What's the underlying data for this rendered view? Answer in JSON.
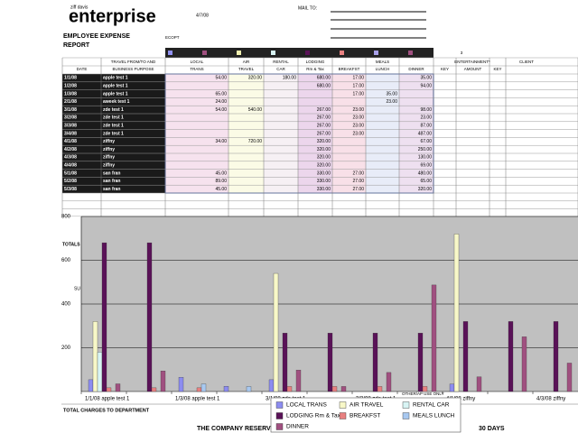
{
  "header": {
    "brand_small": "ziff davis",
    "brand": "enterprise",
    "date": "4/7/08",
    "mail_to": "MAIL TO:",
    "title_line1": "EMPLOYEE EXPENSE",
    "title_line2": "REPORT",
    "code": "ECOPT"
  },
  "table": {
    "section_number": "3",
    "entertainment": "ENTERTAINMENT*",
    "client": "CLIENT",
    "columns": [
      {
        "bottom": "DATE"
      },
      {
        "top": "TRAVEL FROM/TO AND",
        "bottom": "BUSINESS PURPOSE"
      },
      {
        "top": "LOCAL",
        "bottom": "TRANS"
      },
      {
        "top": "AIR",
        "bottom": "TRAVEL"
      },
      {
        "top": "RENTAL",
        "bottom": "CAR"
      },
      {
        "top": "LODGING",
        "bottom": "Rm & Tax"
      },
      {
        "bottom": "BREAKFST"
      },
      {
        "top": "MEALS",
        "bottom": "LUNCH"
      },
      {
        "bottom": "DINNER"
      },
      {
        "bottom": "KEY"
      },
      {
        "bottom": "AMOUNT"
      },
      {
        "bottom": "KEY"
      }
    ],
    "rows": [
      [
        "1/1/08",
        "apple test 1",
        "54.00",
        "320.00",
        "180.00",
        "680.00",
        "17.00",
        null,
        "35.00"
      ],
      [
        "1/2/08",
        "apple test 1",
        null,
        null,
        null,
        "680.00",
        "17.00",
        null,
        "94.00"
      ],
      [
        "1/3/08",
        "apple test 1",
        "65.00",
        null,
        null,
        null,
        "17.00",
        "35.00",
        null
      ],
      [
        "2/1/08",
        "aweek test 1",
        "24.00",
        null,
        null,
        null,
        null,
        "23.00",
        null
      ],
      [
        "3/1/08",
        "zde test 1",
        "54.00",
        "540.00",
        null,
        "267.00",
        "23.00",
        null,
        "98.00"
      ],
      [
        "3/2/08",
        "zde test 1",
        null,
        null,
        null,
        "267.00",
        "23.00",
        null,
        "23.00"
      ],
      [
        "3/3/08",
        "zde test 1",
        null,
        null,
        null,
        "267.00",
        "23.00",
        null,
        "87.00"
      ],
      [
        "3/4/08",
        "zde test 1",
        null,
        null,
        null,
        "267.00",
        "23.00",
        null,
        "487.00"
      ],
      [
        "4/1/08",
        "ziffny",
        "34.00",
        "720.00",
        null,
        "320.00",
        null,
        null,
        "67.00"
      ],
      [
        "4/2/08",
        "ziffny",
        null,
        null,
        null,
        "320.00",
        null,
        null,
        "250.00"
      ],
      [
        "4/3/08",
        "ziffny",
        null,
        null,
        null,
        "320.00",
        null,
        null,
        "130.00"
      ],
      [
        "4/4/08",
        "ziffny",
        null,
        null,
        null,
        "320.00",
        null,
        null,
        "69.00"
      ],
      [
        "5/1/08",
        "san fran",
        "45.00",
        null,
        null,
        "330.00",
        "27.00",
        null,
        "480.00"
      ],
      [
        "5/2/08",
        "san fran",
        "89.00",
        null,
        null,
        "330.00",
        "27.00",
        null,
        "65.00"
      ],
      [
        "5/3/08",
        "san fran",
        "45.00",
        null,
        null,
        "330.00",
        "27.00",
        null,
        "320.00"
      ]
    ]
  },
  "chart_data": {
    "type": "bar",
    "categories": [
      "1/1/08 apple test 1",
      null,
      "1/3/08 apple test 1",
      null,
      "3/1/08 zde test 1",
      null,
      "3/3/08 zde test 1",
      null,
      "4/1/08 ziffny",
      null,
      "4/3/08 ziffny"
    ],
    "ylim": [
      0,
      800
    ],
    "yticks": [
      200,
      400,
      600,
      800
    ],
    "grid": true,
    "series": [
      {
        "name": "LOCAL TRANS",
        "color": "#8c8cf0",
        "values": [
          54,
          null,
          65,
          24,
          54,
          null,
          null,
          null,
          34,
          null,
          null
        ]
      },
      {
        "name": "AIR TRAVEL",
        "color": "#f8f8c8",
        "values": [
          320,
          null,
          null,
          null,
          540,
          null,
          null,
          null,
          720,
          null,
          null
        ]
      },
      {
        "name": "RENTAL CAR",
        "color": "#d8f4f4",
        "values": [
          180,
          null,
          null,
          null,
          null,
          null,
          null,
          null,
          null,
          null,
          null
        ]
      },
      {
        "name": "LODGING Rm & Tax",
        "color": "#5a1258",
        "values": [
          680,
          680,
          null,
          null,
          267,
          267,
          267,
          267,
          320,
          320,
          320
        ]
      },
      {
        "name": "BREAKFST",
        "color": "#e88080",
        "values": [
          17,
          17,
          17,
          null,
          23,
          23,
          23,
          23,
          null,
          null,
          null
        ]
      },
      {
        "name": "MEALS LUNCH",
        "color": "#a8c8f0",
        "values": [
          null,
          null,
          35,
          23,
          null,
          null,
          null,
          null,
          null,
          null,
          null
        ]
      },
      {
        "name": "DINNER",
        "color": "#a05080",
        "values": [
          35,
          94,
          null,
          null,
          98,
          23,
          87,
          487,
          67,
          250,
          130
        ]
      }
    ]
  },
  "footer": {
    "totals": "TOTALS",
    "subtotal": "SU",
    "other_use": "OTHER/AP USE ONLY",
    "total_charges": "TOTAL CHARGES TO DEPARTMENT",
    "notice_start": "THE COMPANY RESERVES",
    "notice_end": "30 DAYS"
  }
}
